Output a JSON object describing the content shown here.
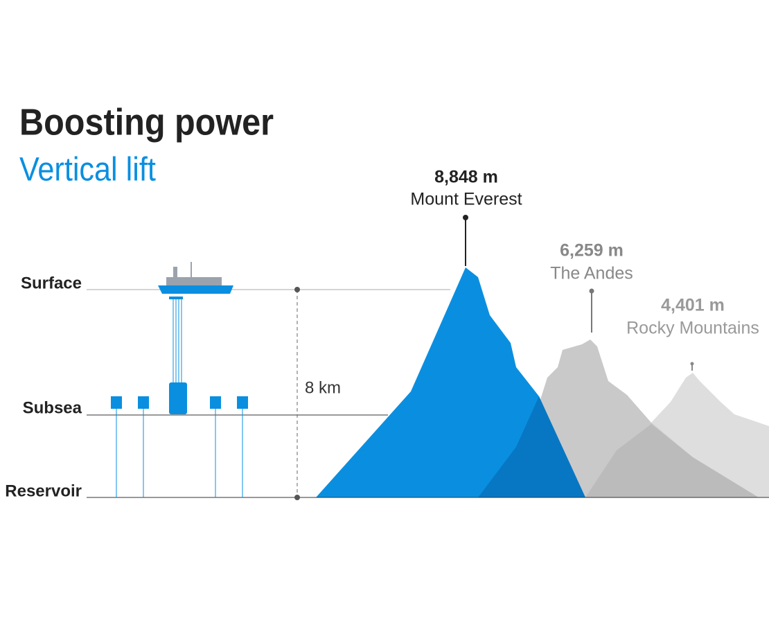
{
  "header": {
    "title": "Boosting power",
    "subtitle": "Vertical lift"
  },
  "levels": [
    "Surface",
    "Subsea",
    "Reservoir"
  ],
  "depth_label": "8 km",
  "peaks": [
    {
      "height": "8,848 m",
      "name": "Mount Everest"
    },
    {
      "height": "6,259 m",
      "name": "The Andes"
    },
    {
      "height": "4,401 m",
      "name": "Rocky Mountains"
    }
  ]
}
